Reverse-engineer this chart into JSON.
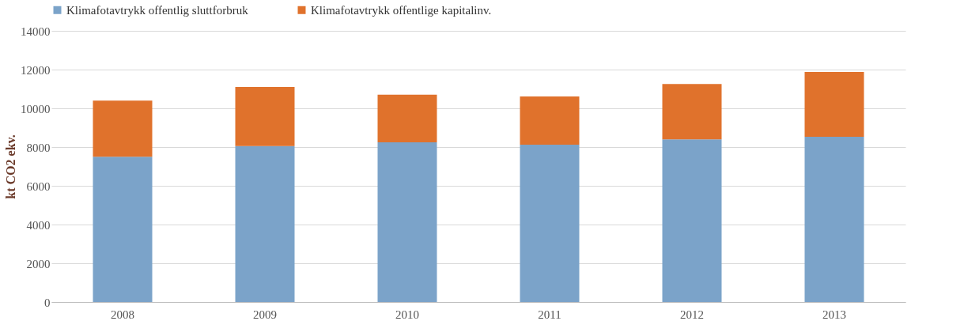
{
  "chart_data": {
    "type": "bar",
    "stacked": true,
    "ylabel": "kt CO2 ekv.",
    "categories": [
      "2008",
      "2009",
      "2010",
      "2011",
      "2012",
      "2013"
    ],
    "series": [
      {
        "name": "Klimafotavtrykk offentlig sluttforbruk",
        "color": "#7ba3c9",
        "values": [
          7500,
          8050,
          8250,
          8120,
          8400,
          8530
        ]
      },
      {
        "name": "Klimafotavtrykk offentlige kapitalinv.",
        "color": "#e0722c",
        "values": [
          2900,
          3050,
          2450,
          2490,
          2860,
          3350
        ]
      }
    ],
    "ylim": [
      0,
      14000
    ],
    "yticks": [
      0,
      2000,
      4000,
      6000,
      8000,
      10000,
      12000,
      14000
    ],
    "grid": "y",
    "legend": "top"
  }
}
